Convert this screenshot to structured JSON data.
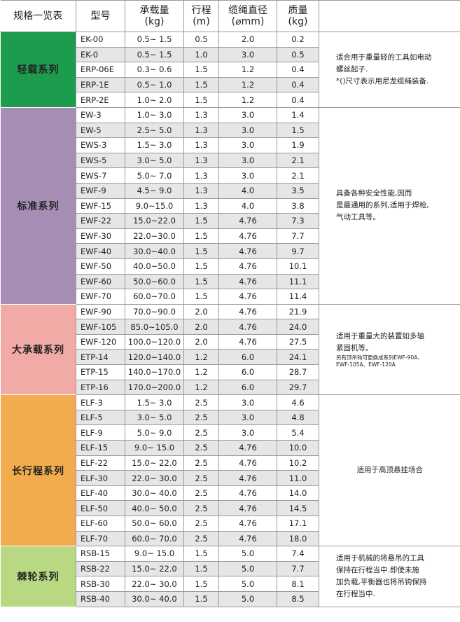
{
  "header": {
    "title": "规格一览表",
    "columns": [
      {
        "label": "型号"
      },
      {
        "label": "承载量",
        "unit": "(kg)"
      },
      {
        "label": "行程",
        "unit": "(m)"
      },
      {
        "label": "缆绳直径",
        "unit": "(⌀mm)"
      },
      {
        "label": "质量",
        "unit": "(kg)"
      }
    ]
  },
  "groups": [
    {
      "name": "轻载系列",
      "color": "#1d9b4f",
      "rows": [
        [
          "EK-00",
          "0.5~ 1.5",
          "0.5",
          "2.0",
          "0.2"
        ],
        [
          "EK-0",
          "0.5~ 1.5",
          "1.0",
          "3.0",
          "0.5"
        ],
        [
          "ERP-06E",
          "0.3~ 0.6",
          "1.5",
          "1.2",
          "0.4"
        ],
        [
          "ERP-1E",
          "0.5~ 1.0",
          "1.5",
          "1.2",
          "0.4"
        ],
        [
          "ERP-2E",
          "1.0~ 2.0",
          "1.5",
          "1.2",
          "0.4"
        ]
      ],
      "note": [
        "适合用于重量轻的工具如电动",
        "螺丝起子.",
        "*()尺寸表示用尼龙缆绳装备."
      ]
    },
    {
      "name": "标准系列",
      "color": "#a58db4",
      "rows": [
        [
          "EW-3",
          "1.0~ 3.0",
          "1.3",
          "3.0",
          "1.4"
        ],
        [
          "EW-5",
          "2.5~ 5.0",
          "1.3",
          "3.0",
          "1.5"
        ],
        [
          "EWS-3",
          "1.5~ 3.0",
          "1.3",
          "3.0",
          "1.9"
        ],
        [
          "EWS-5",
          "3.0~ 5.0",
          "1.3",
          "3.0",
          "2.1"
        ],
        [
          "EWS-7",
          "5.0~ 7.0",
          "1.3",
          "3.0",
          "2.1"
        ],
        [
          "EWF-9",
          "4.5~ 9.0",
          "1.3",
          "4.0",
          "3.5"
        ],
        [
          "EWF-15",
          "9.0~15.0",
          "1.3",
          "4.0",
          "3.8"
        ],
        [
          "EWF-22",
          "15.0~22.0",
          "1.5",
          "4.76",
          "7.3"
        ],
        [
          "EWF-30",
          "22.0~30.0",
          "1.5",
          "4.76",
          "7.7"
        ],
        [
          "EWF-40",
          "30.0~40.0",
          "1.5",
          "4.76",
          "9.7"
        ],
        [
          "EWF-50",
          "40.0~50.0",
          "1.5",
          "4.76",
          "10.1"
        ],
        [
          "EWF-60",
          "50.0~60.0",
          "1.5",
          "4.76",
          "11.1"
        ],
        [
          "EWF-70",
          "60.0~70.0",
          "1.5",
          "4.76",
          "11.4"
        ]
      ],
      "note": [
        "具备各种安全性能,因而",
        "是最通用的系列,适用于焊枪,",
        "气动工具等。"
      ]
    },
    {
      "name": "大承载系列",
      "color": "#f2aaa7",
      "rows": [
        [
          "EWF-90",
          "70.0~90.0",
          "2.0",
          "4.76",
          "21.9"
        ],
        [
          "EWF-105",
          "85.0~105.0",
          "2.0",
          "4.76",
          "24.0"
        ],
        [
          "EWF-120",
          "100.0~120.0",
          "2.0",
          "4.76",
          "27.5"
        ],
        [
          "ETP-14",
          "120.0~140.0",
          "1.2",
          "6.0",
          "24.1"
        ],
        [
          "ETP-15",
          "140.0~170.0",
          "1.2",
          "6.0",
          "28.7"
        ],
        [
          "ETP-16",
          "170.0~200.0",
          "1.2",
          "6.0",
          "29.7"
        ]
      ],
      "note": [
        "适用于重量大的装置如多轴",
        "紧固机等。"
      ],
      "small_note": [
        "另有顶吊钩可更换成系列EWF-90A、",
        "EWF-105A、EWF-120A"
      ]
    },
    {
      "name": "长行程系列",
      "color": "#f2ac4d",
      "rows": [
        [
          "ELF-3",
          "1.5~ 3.0",
          "2.5",
          "3.0",
          "4.6"
        ],
        [
          "ELF-5",
          "3.0~ 5.0",
          "2.5",
          "3.0",
          "4.8"
        ],
        [
          "ELF-9",
          "5.0~ 9.0",
          "2.5",
          "3.0",
          "5.4"
        ],
        [
          "ELF-15",
          "9.0~ 15.0",
          "2.5",
          "4.76",
          "10.0"
        ],
        [
          "ELF-22",
          "15.0~ 22.0",
          "2.5",
          "4.76",
          "10.2"
        ],
        [
          "ELF-30",
          "22.0~ 30.0",
          "2.5",
          "4.76",
          "11.0"
        ],
        [
          "ELF-40",
          "30.0~ 40.0",
          "2.5",
          "4.76",
          "14.0"
        ],
        [
          "ELF-50",
          "40.0~ 50.0",
          "2.5",
          "4.76",
          "14.5"
        ],
        [
          "ELF-60",
          "50.0~ 60.0",
          "2.5",
          "4.76",
          "17.1"
        ],
        [
          "ELF-70",
          "60.0~ 70.0",
          "2.5",
          "4.76",
          "18.0"
        ]
      ],
      "note": [
        "适用于高顶悬挂场合"
      ],
      "note_align": "center"
    },
    {
      "name": "棘轮系列",
      "color": "#b8d882",
      "rows": [
        [
          "RSB-15",
          "9.0~ 15.0",
          "1.5",
          "5.0",
          "7.4"
        ],
        [
          "RSB-22",
          "15.0~ 22.0",
          "1.5",
          "5.0",
          "7.7"
        ],
        [
          "RSB-30",
          "22.0~ 30.0",
          "1.5",
          "5.0",
          "8.1"
        ],
        [
          "RSB-40",
          "30.0~ 40.0",
          "1.5",
          "5.0",
          "8.5"
        ]
      ],
      "note": [
        "适用于机械的将悬吊的工具",
        "保持在行程当中.即使未施",
        "加负载,平衡器也将吊钩保持",
        "在行程当中."
      ]
    }
  ]
}
